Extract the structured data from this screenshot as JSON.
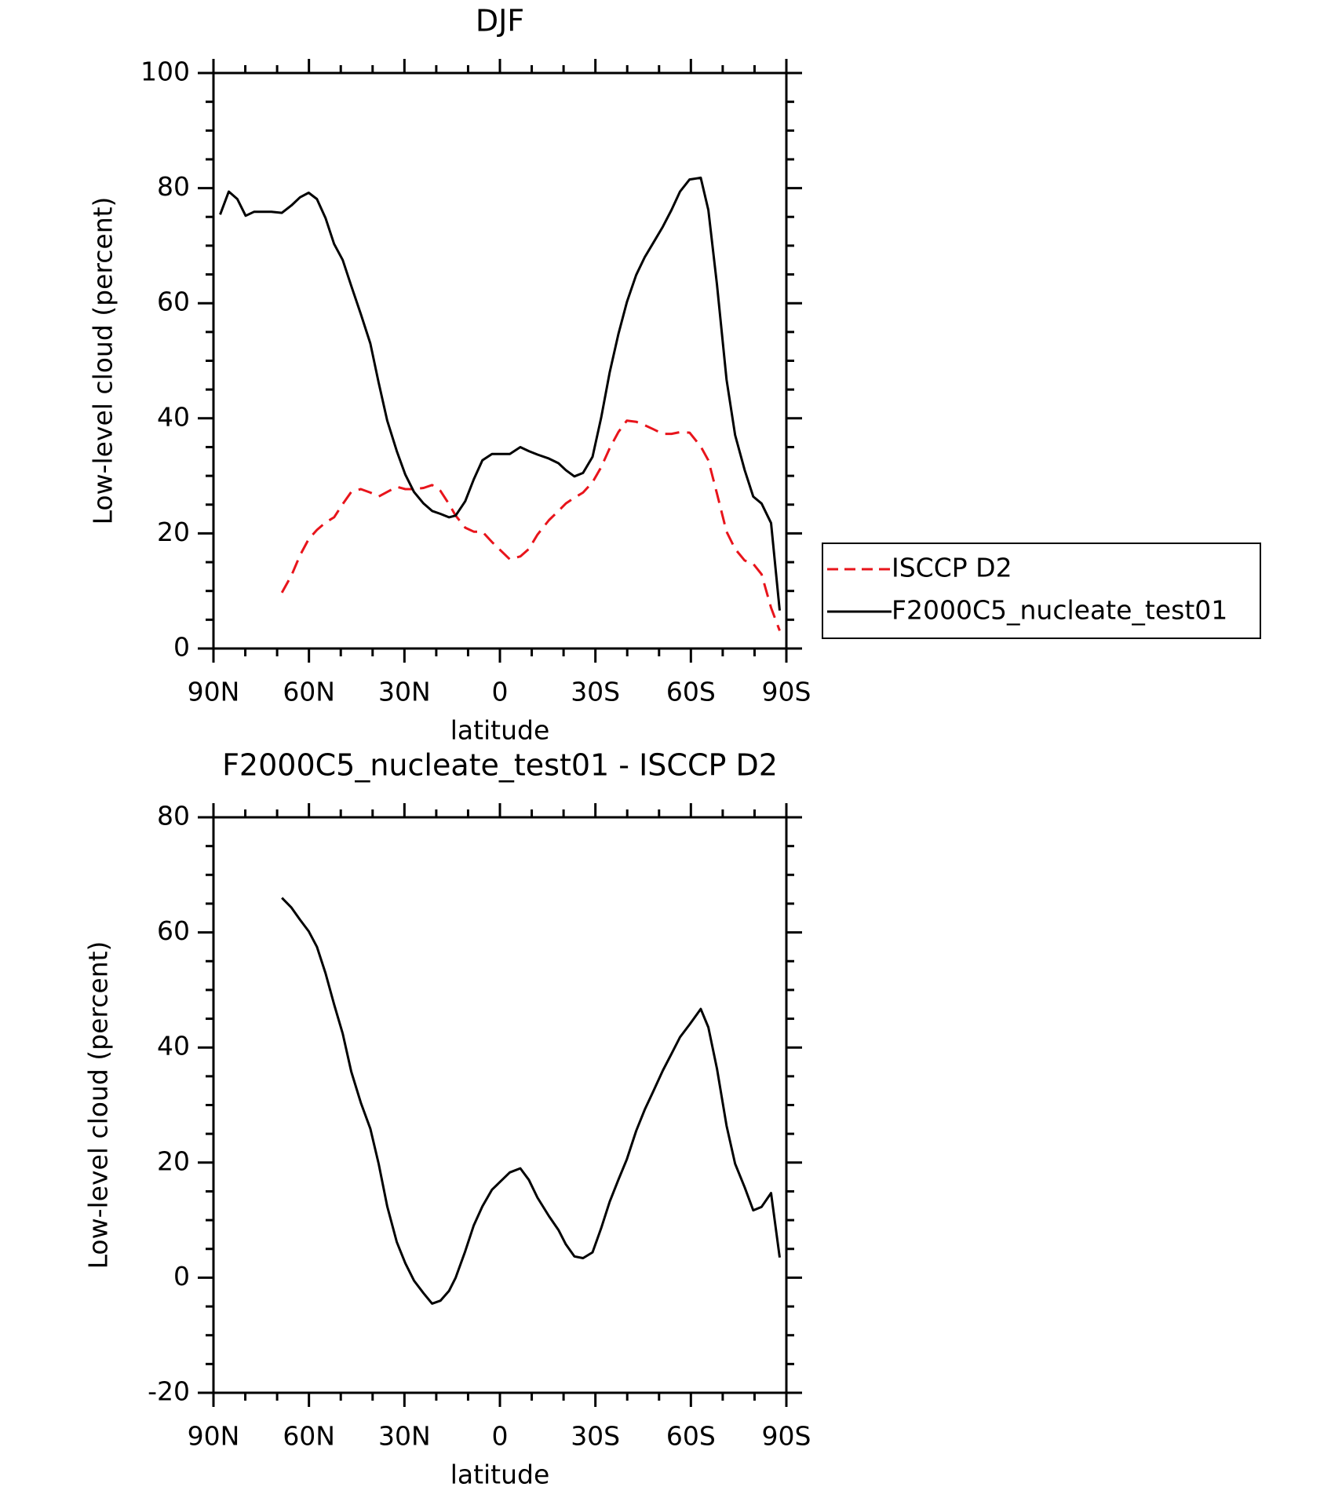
{
  "chart_data": [
    {
      "type": "line",
      "title": "DJF",
      "xlabel": "latitude",
      "ylabel": "Low-level cloud (percent)",
      "x": [
        87.9,
        85.2,
        82.5,
        79.9,
        77.2,
        71.8,
        68.5,
        65.5,
        62.8,
        60.1,
        57.5,
        54.8,
        52.1,
        49.4,
        46.7,
        43.7,
        40.7,
        38.1,
        35.4,
        32.4,
        29.7,
        27.0,
        24.0,
        21.3,
        18.7,
        16.0,
        13.9,
        10.9,
        8.2,
        5.5,
        2.5,
        -3.1,
        -6.4,
        -9.1,
        -11.8,
        -15.4,
        -18.4,
        -20.7,
        -23.4,
        -26.1,
        -29.1,
        -31.8,
        -34.5,
        -37.2,
        -39.9,
        -42.8,
        -45.5,
        -48.2,
        -51.2,
        -53.9,
        -56.6,
        -59.6,
        -63.1,
        -65.5,
        -68.2,
        -71.2,
        -73.9,
        -76.9,
        -79.6,
        -82.2,
        -85.2,
        -87.9
      ],
      "series": [
        {
          "name": "ISCCP D2",
          "color": "#e8141b",
          "dash": true,
          "values": [
            null,
            null,
            null,
            null,
            null,
            null,
            9.7,
            12.7,
            16.2,
            19.0,
            20.6,
            21.9,
            22.8,
            25.1,
            27.2,
            27.7,
            27.1,
            26.4,
            27.2,
            28.1,
            27.7,
            27.7,
            27.9,
            28.4,
            27.4,
            25.1,
            23.1,
            21.0,
            20.3,
            20.3,
            18.5,
            15.5,
            16.0,
            17.3,
            19.8,
            22.3,
            23.9,
            25.2,
            26.2,
            27.1,
            28.9,
            31.5,
            34.8,
            37.6,
            39.6,
            39.4,
            38.8,
            38.1,
            37.3,
            37.3,
            37.6,
            37.5,
            35.1,
            32.7,
            26.9,
            20.3,
            17.3,
            15.3,
            14.7,
            12.9,
            7.1,
            3.1
          ]
        },
        {
          "name": "F2000C5_nucleate_test01",
          "color": "#000000",
          "dash": false,
          "values": [
            75.4,
            79.4,
            78.1,
            75.2,
            75.9,
            75.9,
            75.7,
            77.0,
            78.4,
            79.2,
            78.1,
            74.8,
            70.3,
            67.5,
            63.0,
            58.1,
            53.0,
            46.2,
            39.6,
            34.3,
            30.2,
            27.2,
            25.2,
            23.9,
            23.4,
            22.8,
            23.1,
            25.6,
            29.4,
            32.7,
            33.8,
            33.8,
            35.0,
            34.3,
            33.7,
            33.0,
            32.2,
            31.0,
            29.9,
            30.5,
            33.3,
            40.1,
            48.0,
            54.6,
            60.2,
            64.9,
            68.0,
            70.5,
            73.3,
            76.2,
            79.4,
            81.5,
            81.8,
            76.2,
            63.2,
            46.7,
            37.1,
            31.0,
            26.4,
            25.2,
            21.8,
            6.6
          ]
        }
      ],
      "xlim": [
        90,
        -90
      ],
      "xticks": [
        {
          "value": 90,
          "label": "90N"
        },
        {
          "value": 60,
          "label": "60N"
        },
        {
          "value": 30,
          "label": "30N"
        },
        0,
        {
          "value": -30,
          "label": "30S"
        },
        {
          "value": -60,
          "label": "60S"
        },
        {
          "value": -90,
          "label": "90S"
        }
      ],
      "ylim": [
        0,
        100
      ],
      "yticks": [
        0,
        20,
        40,
        60,
        80,
        100
      ],
      "legend": "right"
    },
    {
      "type": "line",
      "title": "F2000C5_nucleate_test01 - ISCCP D2",
      "xlabel": "latitude",
      "ylabel": "Low-level cloud (percent)",
      "x": [
        68.5,
        65.5,
        62.8,
        60.1,
        57.5,
        54.8,
        52.1,
        49.4,
        46.7,
        43.7,
        40.7,
        38.1,
        35.4,
        32.4,
        29.7,
        27.0,
        24.0,
        21.3,
        18.7,
        16.0,
        13.9,
        10.9,
        8.2,
        5.5,
        2.5,
        -3.1,
        -6.4,
        -9.1,
        -11.8,
        -15.4,
        -18.4,
        -20.7,
        -23.4,
        -26.1,
        -29.1,
        -31.8,
        -34.5,
        -37.2,
        -39.9,
        -42.8,
        -45.5,
        -48.2,
        -51.2,
        -53.9,
        -56.6,
        -59.6,
        -63.1,
        -65.5,
        -68.2,
        -71.2,
        -73.9,
        -76.9,
        -79.6,
        -82.2,
        -85.2,
        -87.9
      ],
      "values": [
        66.0,
        64.3,
        62.2,
        60.2,
        57.5,
        52.9,
        47.5,
        42.4,
        35.8,
        30.4,
        25.9,
        19.8,
        12.4,
        6.2,
        2.5,
        -0.5,
        -2.7,
        -4.5,
        -4.0,
        -2.3,
        0.0,
        4.6,
        9.1,
        12.4,
        15.3,
        18.3,
        19.0,
        17.0,
        13.9,
        10.7,
        8.3,
        5.8,
        3.7,
        3.4,
        4.4,
        8.6,
        13.2,
        17.0,
        20.6,
        25.5,
        29.2,
        32.4,
        36.0,
        38.9,
        41.8,
        44.0,
        46.7,
        43.5,
        36.3,
        26.4,
        19.8,
        15.7,
        11.7,
        12.3,
        14.7,
        3.5
      ],
      "color": "#000000",
      "xlim": [
        90,
        -90
      ],
      "xticks": [
        {
          "value": 90,
          "label": "90N"
        },
        {
          "value": 60,
          "label": "60N"
        },
        {
          "value": 30,
          "label": "30N"
        },
        0,
        {
          "value": -30,
          "label": "30S"
        },
        {
          "value": -60,
          "label": "60S"
        },
        {
          "value": -90,
          "label": "90S"
        }
      ],
      "ylim": [
        -20,
        80
      ],
      "yticks": [
        -20,
        0,
        20,
        40,
        60,
        80
      ]
    }
  ]
}
